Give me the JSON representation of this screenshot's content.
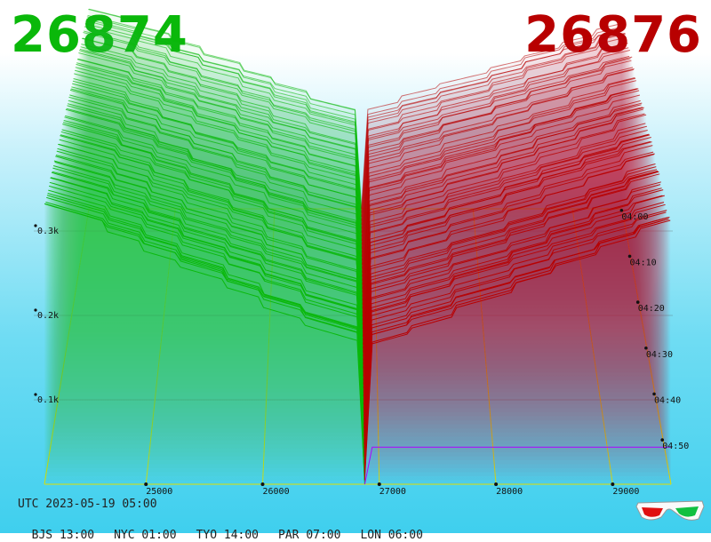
{
  "header": {
    "bid_price": "26874",
    "ask_price": "26876"
  },
  "colors": {
    "bid": "#0ab80a",
    "ask": "#b80000",
    "grid": "#e0e000",
    "mid_line": "#b000ff"
  },
  "footer": {
    "utc": "UTC 2023-05-19 05:00",
    "zones": [
      "BJS 13:00",
      "NYC 01:00",
      "TYO 14:00",
      "PAR 07:00",
      "LON 06:00"
    ]
  },
  "icon": "3d-glasses-icon",
  "chart_data": {
    "type": "area",
    "style": "3d-waterfall-order-book-depth",
    "x_ticks": [
      "25000",
      "26000",
      "27000",
      "28000",
      "29000"
    ],
    "x_values": [
      25000,
      26000,
      27000,
      28000,
      29000
    ],
    "depth_ticks": [
      "0.1k",
      "0.2k",
      "0.3k"
    ],
    "depth_values": [
      100,
      200,
      300
    ],
    "time_ticks": [
      "04:00",
      "04:10",
      "04:20",
      "04:30",
      "04:40",
      "04:50"
    ],
    "series": [
      {
        "side": "bid",
        "price_range": [
          24130,
          26874
        ],
        "depth_at_far_price": 330,
        "depth_near_mid": 220
      },
      {
        "side": "ask",
        "price_range": [
          26876,
          29500
        ],
        "depth_near_mid": 160,
        "depth_at_far_price": 260
      }
    ],
    "grid": true
  }
}
